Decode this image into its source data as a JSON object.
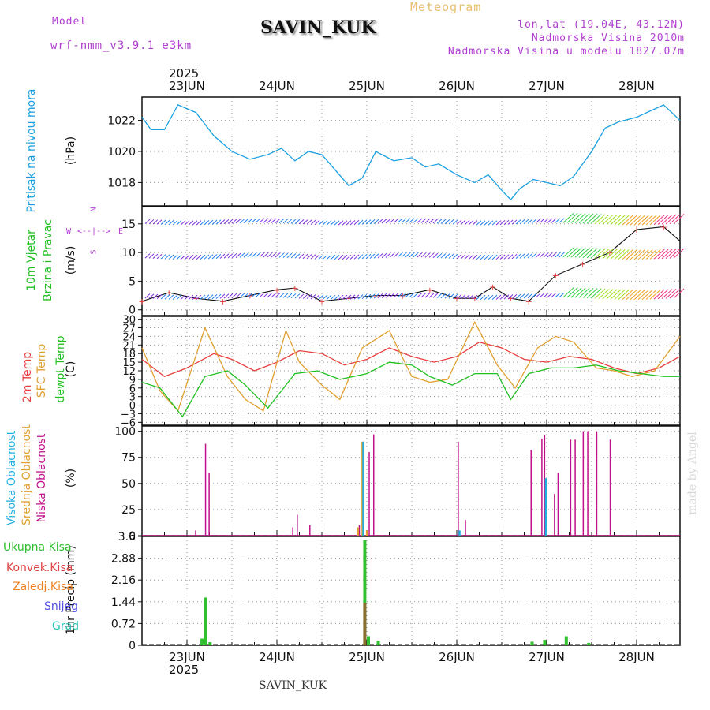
{
  "header": {
    "model_label": "Model",
    "model_name": "wrf-nmm_v3.9.1  e3km",
    "title": "SAVIN_KUK",
    "meteogram_label": "Meteogram",
    "coords": "lon,lat (19.04E, 43.12N)",
    "elevation": "Nadmorska Visina 2010m",
    "model_elevation": "Nadmorska Visina u modelu 1827.07m",
    "year": "2025",
    "footer_station": "SAVIN_KUK",
    "watermark": "made by Angel"
  },
  "days": [
    "23JUN",
    "24JUN",
    "25JUN",
    "26JUN",
    "27JUN",
    "28JUN"
  ],
  "colors": {
    "pressure": "#1aa0e0",
    "temp2m": "#e84040",
    "sfc": "#e0a030",
    "dew": "#20c020",
    "high_cloud": "#20b0e0",
    "mid_cloud": "#e0a030",
    "low_cloud": "#c0108a",
    "total_precip": "#30c030",
    "conv_precip": "#e04040",
    "frozen": "#f08020",
    "snow": "#5050e0",
    "grad": "#20c0b0"
  },
  "chart_data": [
    {
      "type": "line",
      "id": "pressure",
      "ylabel_main": "Pritisak na nivou mora",
      "unit": "(hPa)",
      "ylim": [
        1016.5,
        1023.5
      ],
      "yticks": [
        1018,
        1020,
        1022
      ],
      "series": [
        {
          "name": "MSLP",
          "x_days": [
            0,
            0.1,
            0.25,
            0.4,
            0.6,
            0.8,
            1.0,
            1.2,
            1.4,
            1.55,
            1.7,
            1.85,
            2.0,
            2.15,
            2.3,
            2.45,
            2.6,
            2.8,
            3.0,
            3.15,
            3.3,
            3.5,
            3.7,
            3.85,
            4.0,
            4.1,
            4.2,
            4.35,
            4.5,
            4.65,
            4.8,
            5.0,
            5.15,
            5.3,
            5.5,
            5.65,
            5.8,
            6.0
          ],
          "values": [
            1022.2,
            1021.4,
            1021.4,
            1023.0,
            1022.5,
            1021.0,
            1020.0,
            1019.5,
            1019.8,
            1020.2,
            1019.4,
            1020.0,
            1019.8,
            1018.8,
            1017.8,
            1018.3,
            1020.0,
            1019.4,
            1019.6,
            1019.0,
            1019.2,
            1018.5,
            1018.0,
            1018.5,
            1017.5,
            1016.9,
            1017.6,
            1018.2,
            1018.0,
            1017.8,
            1018.4,
            1020.0,
            1021.5,
            1021.9,
            1022.2,
            1022.6,
            1023.0,
            1022.0
          ]
        }
      ]
    },
    {
      "type": "line",
      "id": "wind",
      "ylabel_main": "10m Vjetar",
      "ylabel_sub": "Brzina i Pravac",
      "unit": "(m/s)",
      "compass": {
        "n": "N",
        "s": "S",
        "e": "E",
        "w": "W"
      },
      "ylim": [
        -1,
        18
      ],
      "yticks": [
        0,
        5,
        10,
        15
      ],
      "series": [
        {
          "name": "wind speed",
          "x_days": [
            0,
            0.3,
            0.6,
            0.9,
            1.2,
            1.5,
            1.7,
            2.0,
            2.3,
            2.6,
            2.9,
            3.2,
            3.5,
            3.7,
            3.9,
            4.1,
            4.3,
            4.6,
            4.9,
            5.2,
            5.5,
            5.8,
            6.0
          ],
          "values": [
            1.5,
            3.0,
            2.0,
            1.5,
            2.5,
            3.5,
            3.8,
            1.5,
            2.0,
            2.5,
            2.5,
            3.5,
            2.0,
            2.0,
            4.0,
            2.0,
            1.5,
            6.0,
            8.0,
            10.0,
            14.0,
            14.5,
            12.0
          ]
        }
      ]
    },
    {
      "type": "line",
      "id": "temperature",
      "ylabel_a": "2m Temp",
      "ylabel_b": "SFC Temp",
      "ylabel_c": "dewpt Temp",
      "unit": "(C)",
      "ylim": [
        -7,
        31
      ],
      "yticks": [
        -6,
        -3,
        0,
        3,
        6,
        9,
        12,
        15,
        18,
        21,
        24,
        27,
        30
      ],
      "series": [
        {
          "name": "2m Temp",
          "x_days": [
            0,
            0.25,
            0.5,
            0.8,
            1.0,
            1.25,
            1.5,
            1.75,
            2.0,
            2.25,
            2.5,
            2.75,
            3.0,
            3.25,
            3.5,
            3.75,
            4.0,
            4.25,
            4.5,
            4.75,
            5.0,
            5.25,
            5.5,
            5.75,
            6.0
          ],
          "values": [
            16,
            10,
            13,
            18,
            16,
            12,
            15,
            19,
            18,
            14,
            16,
            20,
            17,
            15,
            17,
            22,
            20,
            16,
            15,
            17,
            16,
            13,
            11,
            13,
            17
          ]
        },
        {
          "name": "SFC Temp",
          "x_days": [
            0,
            0.2,
            0.4,
            0.7,
            0.95,
            1.15,
            1.35,
            1.6,
            1.75,
            2.0,
            2.2,
            2.45,
            2.75,
            3.0,
            3.2,
            3.4,
            3.7,
            3.95,
            4.15,
            4.4,
            4.6,
            4.8,
            5.05,
            5.25,
            5.45,
            5.7,
            6.0
          ],
          "values": [
            20,
            5,
            -2,
            27,
            10,
            2,
            -2,
            26,
            15,
            7,
            2,
            20,
            26,
            10,
            8,
            9,
            29,
            14,
            6,
            20,
            24,
            22,
            13,
            12,
            10,
            12,
            24
          ]
        },
        {
          "name": "dewpt Temp",
          "x_days": [
            0,
            0.2,
            0.45,
            0.7,
            0.95,
            1.15,
            1.4,
            1.7,
            1.95,
            2.2,
            2.5,
            2.75,
            3.0,
            3.2,
            3.45,
            3.7,
            3.95,
            4.1,
            4.3,
            4.55,
            4.8,
            5.05,
            5.3,
            5.55,
            5.8,
            6.0
          ],
          "values": [
            8,
            6,
            -4,
            10,
            12,
            7,
            -1,
            11,
            12,
            9,
            11,
            15,
            14,
            10,
            7,
            11,
            11,
            2,
            11,
            13,
            13,
            14,
            12,
            11,
            10,
            10
          ]
        }
      ]
    },
    {
      "type": "bar",
      "id": "cloud",
      "ylabel_a": "Visoka Oblacnost",
      "ylabel_b": "Srednja Oblacnost",
      "ylabel_c": "Niska Oblacnost",
      "unit": "(%)",
      "ylim": [
        0,
        105
      ],
      "yticks": [
        0,
        25,
        50,
        75,
        100
      ],
      "series": [
        {
          "name": "Niska Oblacnost",
          "x_days": [
            0.59,
            0.7,
            0.74,
            1.67,
            1.72,
            1.86,
            2.41,
            2.46,
            2.52,
            2.57,
            3.51,
            3.59,
            4.32,
            4.44,
            4.47,
            4.58,
            4.62,
            4.76,
            4.81,
            4.9,
            4.95,
            5.05,
            5.2
          ],
          "values": [
            5,
            88,
            60,
            8,
            20,
            10,
            10,
            90,
            80,
            97,
            90,
            15,
            82,
            93,
            96,
            40,
            60,
            92,
            92,
            100,
            100,
            100,
            92
          ]
        },
        {
          "name": "Srednja Oblacnost",
          "x_days": [
            2.39,
            2.44,
            2.49
          ],
          "values": [
            8,
            90,
            5
          ]
        },
        {
          "name": "Visoka Oblacnost",
          "x_days": [
            2.45,
            3.52,
            4.48
          ],
          "values": [
            90,
            5,
            55
          ]
        }
      ]
    },
    {
      "type": "bar",
      "id": "precip",
      "ylabel_main": "1hr Precip (mm)",
      "legend": [
        "Ukupna Kisa",
        "Konvek.Kisa",
        "Zaledj.Kisa",
        "Snijeg",
        "Grad"
      ],
      "ylim": [
        0,
        3.6
      ],
      "yticks": [
        0,
        0.72,
        1.44,
        2.16,
        2.88,
        3.6
      ],
      "series": [
        {
          "name": "Ukupna Kisa",
          "x_days": [
            0.65,
            0.69,
            0.74,
            2.46,
            2.5,
            2.61,
            4.32,
            4.46,
            4.7,
            4.95
          ],
          "values": [
            0.22,
            1.58,
            0.1,
            3.48,
            0.3,
            0.15,
            0.12,
            0.18,
            0.3,
            0.08
          ]
        },
        {
          "name": "Konvek.Kisa",
          "x_days": [
            2.46
          ],
          "values": [
            1.4
          ]
        }
      ]
    }
  ]
}
